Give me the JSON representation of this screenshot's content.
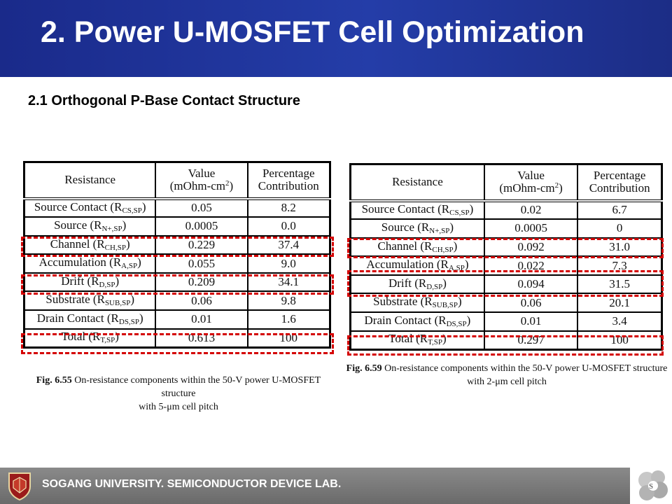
{
  "header": {
    "title": "2. Power U-MOSFET Cell Optimization"
  },
  "subtitle": "2.1 Orthogonal P-Base Contact Structure",
  "table_left": {
    "headers": {
      "resistance": "Resistance",
      "value_line1": "Value",
      "value_line2": "(mOhm-cm",
      "value_sup": "2",
      "value_close": ")",
      "pct_line1": "Percentage",
      "pct_line2": "Contribution"
    },
    "rows": [
      {
        "name": "Source Contact (R",
        "sub": "CS,SP",
        "close": ")",
        "value": "0.05",
        "pct": "8.2"
      },
      {
        "name": "Source (R",
        "sub": "N+,SP",
        "close": ")",
        "value": "0.0005",
        "pct": "0.0"
      },
      {
        "name": "Channel (R",
        "sub": "CH,SP",
        "close": ")",
        "value": "0.229",
        "pct": "37.4"
      },
      {
        "name": "Accumulation (R",
        "sub": "A,SP",
        "close": ")",
        "value": "0.055",
        "pct": "9.0"
      },
      {
        "name": "Drift (R",
        "sub": "D,SP",
        "close": ")",
        "value": "0.209",
        "pct": "34.1"
      },
      {
        "name": "Substrate (R",
        "sub": "SUB,SP",
        "close": ")",
        "value": "0.06",
        "pct": "9.8"
      },
      {
        "name": "Drain Contact (R",
        "sub": "DS,SP",
        "close": ")",
        "value": "0.01",
        "pct": "1.6"
      },
      {
        "name": "Total (R",
        "sub": "T,SP",
        "close": ")",
        "value": "0.613",
        "pct": "100"
      }
    ],
    "caption_label": "Fig. 6.55",
    "caption_text": "On-resistance components within the 50-V power U-MOSFET structure",
    "caption_line2": "with 5-μm cell pitch"
  },
  "table_right": {
    "headers": {
      "resistance": "Resistance",
      "value_line1": "Value",
      "value_line2": "(mOhm-cm",
      "value_sup": "2",
      "value_close": ")",
      "pct_line1": "Percentage",
      "pct_line2": "Contribution"
    },
    "rows": [
      {
        "name": "Source Contact (R",
        "sub": "CS,SP",
        "close": ")",
        "value": "0.02",
        "pct": "6.7"
      },
      {
        "name": "Source (R",
        "sub": "N+,SP",
        "close": ")",
        "value": "0.0005",
        "pct": "0"
      },
      {
        "name": "Channel (R",
        "sub": "CH,SP",
        "close": ")",
        "value": "0.092",
        "pct": "31.0"
      },
      {
        "name": "Accumulation (R",
        "sub": "A,SP",
        "close": ")",
        "value": "0.022",
        "pct": "7.3"
      },
      {
        "name": "Drift (R",
        "sub": "D,SP",
        "close": ")",
        "value": "0.094",
        "pct": "31.5"
      },
      {
        "name": "Substrate (R",
        "sub": "SUB,SP",
        "close": ")",
        "value": "0.06",
        "pct": "20.1"
      },
      {
        "name": "Drain Contact (R",
        "sub": "DS,SP",
        "close": ")",
        "value": "0.01",
        "pct": "3.4"
      },
      {
        "name": "Total (R",
        "sub": "T,SP",
        "close": ")",
        "value": "0.297",
        "pct": "100"
      }
    ],
    "caption_label": "Fig. 6.59",
    "caption_text": "On-resistance components within the 50-V power U-MOSFET structure",
    "caption_line2": "with 2-μm cell pitch"
  },
  "highlight_color": "#d40000",
  "footer": {
    "text": "SOGANG UNIVERSITY. SEMICONDUCTOR DEVICE LAB."
  },
  "icons": {
    "footer_logo": "university-shield-icon",
    "corner_logo": "lab-logo-icon"
  }
}
